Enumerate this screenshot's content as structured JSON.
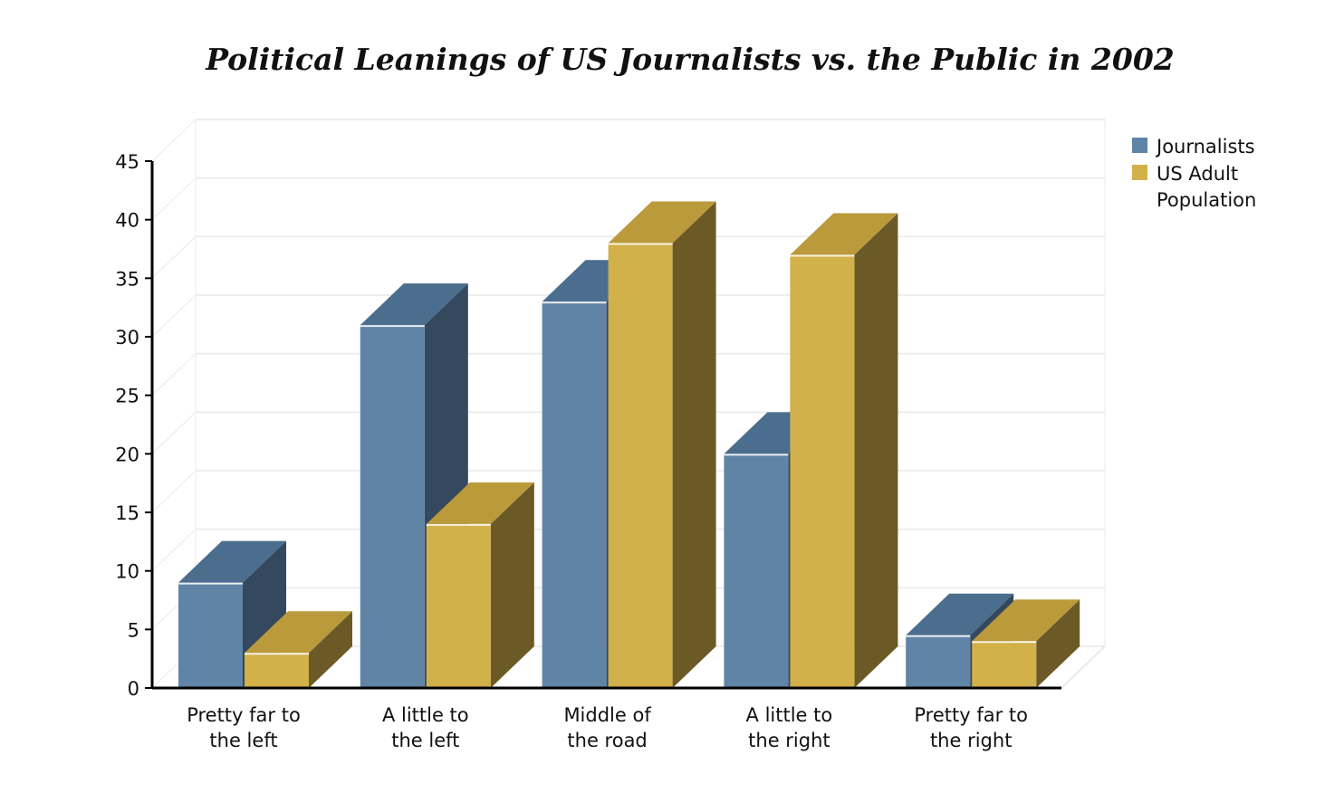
{
  "chart_data": {
    "type": "bar",
    "title": "Political Leanings of US Journalists vs. the Public in 2002",
    "xlabel": "",
    "ylabel": "",
    "ylim": [
      0,
      45
    ],
    "yticks": [
      0,
      5,
      10,
      15,
      20,
      25,
      30,
      35,
      40,
      45
    ],
    "grid": true,
    "legend_position": "top-right",
    "categories": [
      [
        "Pretty far to",
        "the left"
      ],
      [
        "A little to",
        "the left"
      ],
      [
        "Middle of",
        "the road"
      ],
      [
        "A little to",
        "the right"
      ],
      [
        "Pretty far to",
        "the right"
      ]
    ],
    "series": [
      {
        "name": "Journalists",
        "legend_lines": [
          "Journalists"
        ],
        "color": "#5f84a6",
        "top": "#4b6d8e",
        "side": "#34495d",
        "values": [
          9,
          31,
          33,
          20,
          4.5
        ]
      },
      {
        "name": "US Adult Population",
        "legend_lines": [
          "US Adult",
          "Population"
        ],
        "color": "#d2b04a",
        "top": "#bb9a3c",
        "side": "#6b5a26",
        "values": [
          3,
          14,
          38,
          37,
          4
        ]
      }
    ]
  }
}
